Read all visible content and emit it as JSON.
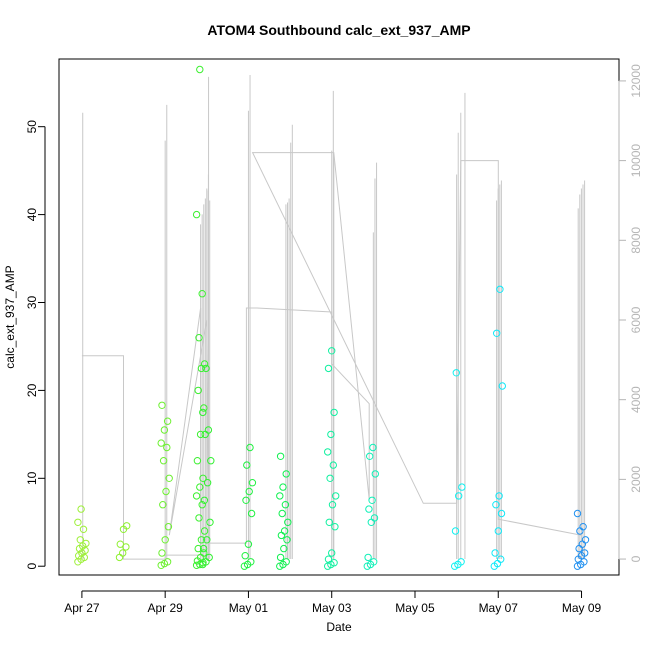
{
  "chart_data": {
    "type": "scatter",
    "title": "ATOM4 Southbound calc_ext_937_AMP",
    "xlabel": "Date",
    "ylabel": "calc_ext_937_AMP",
    "x_ticks": [
      "Apr 27",
      "Apr 29",
      "May 01",
      "May 03",
      "May 05",
      "May 07",
      "May 09"
    ],
    "y_ticks": [
      0,
      10,
      20,
      30,
      40,
      50
    ],
    "y2_ticks": [
      0,
      2000,
      4000,
      6000,
      8000,
      10000,
      12000
    ],
    "x_range_days": [
      -0.55,
      12.9
    ],
    "ylim": [
      -1.0,
      57.7
    ],
    "y2lim": [
      -400,
      12550
    ],
    "grid": false,
    "legend": "none",
    "point_style": "open-circle",
    "color_gradient": [
      "#80ff00",
      "#00ff00",
      "#00ffff",
      "#0080ff"
    ],
    "clusters": [
      {
        "day": 0.0,
        "values": [
          0.5,
          0.8,
          1.0,
          1.2,
          1.5,
          1.8,
          2.0,
          2.3,
          2.6,
          3.0,
          4.2,
          5.0,
          6.5
        ],
        "color": "#9ef03a"
      },
      {
        "day": 1.0,
        "values": [
          1.0,
          1.5,
          2.2,
          2.5,
          4.2,
          4.6
        ],
        "color": "#8ef030"
      },
      {
        "day": 2.0,
        "values": [
          0.1,
          0.3,
          0.5,
          1.5,
          3.0,
          4.5,
          7.0,
          8.5,
          10.0,
          12.0,
          13.5,
          14.0,
          15.5,
          16.5,
          18.3
        ],
        "color": "#6cf030"
      },
      {
        "day": 2.85,
        "values": [
          0.1,
          0.2,
          0.4,
          0.6,
          1.0,
          1.5,
          2.0,
          3.0,
          4.0,
          5.5,
          7.0,
          8.0,
          9.0,
          10.0,
          12.0,
          15.0,
          18.0,
          20.0,
          22.5,
          23.0,
          26.0,
          31.0,
          40.0,
          56.5
        ],
        "color": "#3cf030"
      },
      {
        "day": 3.0,
        "values": [
          0.2,
          0.5,
          1.0,
          2.0,
          3.0,
          5.0,
          7.5,
          9.5,
          12.0,
          15.0,
          15.5,
          17.5,
          22.5
        ],
        "color": "#30f030"
      },
      {
        "day": 4.0,
        "values": [
          0.0,
          0.2,
          0.5,
          1.2,
          2.5,
          6.0,
          7.5,
          8.5,
          9.5,
          11.5,
          13.5
        ],
        "color": "#20f040"
      },
      {
        "day": 4.85,
        "values": [
          0.0,
          0.2,
          0.5,
          1.0,
          2.0,
          3.0,
          3.5,
          4.0,
          5.0,
          6.0,
          7.0,
          8.0,
          9.0,
          10.5,
          12.5
        ],
        "color": "#10f050"
      },
      {
        "day": 6.0,
        "values": [
          0.0,
          0.2,
          0.4,
          0.8,
          1.5,
          4.5,
          5.0,
          7.0,
          8.0,
          10.0,
          11.5,
          13.0,
          15.0,
          17.5,
          22.5,
          24.5
        ],
        "color": "#10f0a0"
      },
      {
        "day": 6.95,
        "values": [
          0.0,
          0.2,
          0.5,
          1.0,
          5.0,
          5.5,
          6.5,
          7.5,
          10.5,
          12.5,
          13.5
        ],
        "color": "#10f0b8"
      },
      {
        "day": 9.05,
        "values": [
          0.0,
          0.2,
          0.5,
          4.0,
          8.0,
          9.0,
          22.0
        ],
        "color": "#10f0f0"
      },
      {
        "day": 10.0,
        "values": [
          0.0,
          0.3,
          0.8,
          1.5,
          4.0,
          6.0,
          7.0,
          8.0,
          20.5,
          26.5,
          31.5
        ],
        "color": "#10e8f8"
      },
      {
        "day": 12.0,
        "values": [
          0.0,
          0.2,
          0.5,
          0.8,
          1.2,
          1.5,
          2.0,
          2.5,
          3.0,
          4.0,
          4.5,
          6.0
        ],
        "color": "#2090f0"
      }
    ],
    "secondary_spikes": [
      {
        "day": 0.02,
        "values": [
          11200
        ]
      },
      {
        "day": 2.0,
        "values": [
          10500,
          11400
        ]
      },
      {
        "day": 2.85,
        "values": [
          8400,
          8650,
          8900,
          9050,
          9250,
          12100
        ]
      },
      {
        "day": 3.0,
        "values": [
          9300,
          9650
        ]
      },
      {
        "day": 3.07,
        "values": [
          9000
        ]
      },
      {
        "day": 4.0,
        "values": [
          11250,
          12150
        ]
      },
      {
        "day": 4.9,
        "values": [
          8900,
          8950,
          9050,
          10450,
          10900
        ]
      },
      {
        "day": 6.0,
        "values": [
          10250,
          11750
        ]
      },
      {
        "day": 6.05,
        "values": [
          10150
        ]
      },
      {
        "day": 7.0,
        "values": [
          8200,
          9550,
          9950
        ]
      },
      {
        "day": 9.0,
        "values": [
          9650,
          10700
        ]
      },
      {
        "day": 9.1,
        "values": [
          11200
        ]
      },
      {
        "day": 9.2,
        "values": [
          11700
        ]
      },
      {
        "day": 9.96,
        "values": [
          9000,
          9300,
          9400,
          9500
        ]
      },
      {
        "day": 11.92,
        "values": [
          8800,
          9150,
          9300,
          9400,
          9500
        ]
      }
    ],
    "secondary_path": [
      [
        0.0,
        5100
      ],
      [
        0.0,
        5100
      ],
      [
        1.0,
        5100
      ],
      [
        1.0,
        0
      ],
      [
        2.0,
        0
      ],
      [
        2.0,
        100
      ],
      [
        2.85,
        100
      ],
      [
        2.85,
        6300
      ],
      [
        2.1,
        600
      ],
      [
        3.0,
        6000
      ],
      [
        3.05,
        400
      ],
      [
        3.95,
        400
      ],
      [
        3.95,
        6300
      ],
      [
        4.2,
        6300
      ],
      [
        6.0,
        6200
      ],
      [
        6.0,
        4900
      ],
      [
        6.9,
        3900
      ],
      [
        6.9,
        1500
      ],
      [
        6.05,
        10200
      ],
      [
        4.1,
        10200
      ],
      [
        8.2,
        1400
      ],
      [
        9.0,
        1400
      ],
      [
        9.1,
        10000
      ],
      [
        10.0,
        10000
      ],
      [
        10.0,
        1000
      ],
      [
        12.0,
        600
      ]
    ]
  }
}
